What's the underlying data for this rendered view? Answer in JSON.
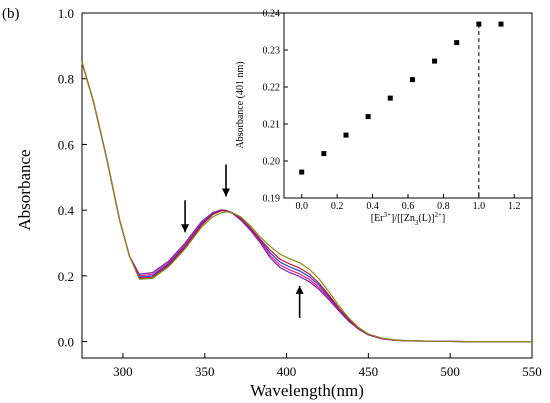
{
  "chart_data": [
    {
      "panel_label": "(b)",
      "type": "line",
      "xlabel": "Wavelength(nm)",
      "ylabel": "Absorbance",
      "xlim": [
        275,
        550
      ],
      "ylim": [
        -0.05,
        1.0
      ],
      "xticks": [
        "300",
        "350",
        "400",
        "450",
        "500",
        "550"
      ],
      "yticks": [
        "0.0",
        "0.2",
        "0.4",
        "0.6",
        "0.8",
        "1.0"
      ],
      "grid": false,
      "legend": "none",
      "x": [
        275,
        282,
        290,
        298,
        304,
        310,
        318,
        328,
        338,
        348,
        355,
        360,
        363,
        367,
        372,
        378,
        384,
        390,
        396,
        402,
        408,
        414,
        420,
        426,
        432,
        438,
        444,
        450,
        458,
        466,
        476,
        490,
        510,
        530,
        550
      ],
      "series": [
        {
          "color": "#7b1fa2",
          "values": [
            0.85,
            0.73,
            0.56,
            0.37,
            0.26,
            0.205,
            0.21,
            0.245,
            0.3,
            0.365,
            0.393,
            0.4,
            0.398,
            0.39,
            0.37,
            0.338,
            0.3,
            0.255,
            0.225,
            0.21,
            0.198,
            0.182,
            0.158,
            0.127,
            0.093,
            0.062,
            0.038,
            0.02,
            0.009,
            0.004,
            0.002,
            0.001,
            0.0,
            0.0,
            0.0
          ]
        },
        {
          "color": "#e91e8c",
          "values": [
            0.85,
            0.73,
            0.56,
            0.37,
            0.26,
            0.2,
            0.205,
            0.24,
            0.295,
            0.362,
            0.392,
            0.401,
            0.399,
            0.391,
            0.372,
            0.34,
            0.303,
            0.262,
            0.233,
            0.218,
            0.206,
            0.189,
            0.164,
            0.131,
            0.096,
            0.064,
            0.039,
            0.021,
            0.009,
            0.004,
            0.002,
            0.001,
            0.0,
            0.0,
            0.0
          ]
        },
        {
          "color": "#1e3fd6",
          "values": [
            0.85,
            0.73,
            0.56,
            0.37,
            0.26,
            0.196,
            0.2,
            0.236,
            0.29,
            0.358,
            0.39,
            0.4,
            0.399,
            0.392,
            0.374,
            0.343,
            0.307,
            0.27,
            0.242,
            0.227,
            0.215,
            0.197,
            0.171,
            0.136,
            0.099,
            0.066,
            0.04,
            0.021,
            0.01,
            0.004,
            0.002,
            0.001,
            0.0,
            0.0,
            0.0
          ]
        },
        {
          "color": "#c0182f",
          "values": [
            0.85,
            0.73,
            0.56,
            0.37,
            0.26,
            0.193,
            0.196,
            0.232,
            0.286,
            0.354,
            0.387,
            0.398,
            0.398,
            0.392,
            0.376,
            0.346,
            0.311,
            0.278,
            0.251,
            0.236,
            0.224,
            0.205,
            0.177,
            0.141,
            0.102,
            0.068,
            0.041,
            0.022,
            0.01,
            0.004,
            0.002,
            0.001,
            0.0,
            0.0,
            0.0
          ]
        },
        {
          "color": "#8a8a1a",
          "values": [
            0.85,
            0.73,
            0.56,
            0.37,
            0.26,
            0.19,
            0.192,
            0.228,
            0.282,
            0.348,
            0.38,
            0.392,
            0.395,
            0.392,
            0.38,
            0.352,
            0.318,
            0.29,
            0.266,
            0.252,
            0.24,
            0.22,
            0.19,
            0.151,
            0.109,
            0.072,
            0.043,
            0.023,
            0.011,
            0.005,
            0.002,
            0.001,
            0.0,
            0.0,
            0.0
          ]
        }
      ],
      "arrows": [
        {
          "x": 338,
          "direction": "down"
        },
        {
          "x": 363,
          "direction": "down"
        },
        {
          "x": 408,
          "direction": "up"
        }
      ]
    },
    {
      "type": "scatter",
      "inset": true,
      "xlabel": "[Er3+]/[[Zn3(L)]2+]",
      "ylabel": "Absorbance (401 nm)",
      "xlim": [
        -0.1,
        1.3
      ],
      "ylim": [
        0.19,
        0.24
      ],
      "xticks": [
        "0.0",
        "0.2",
        "0.4",
        "0.6",
        "0.8",
        "1.0",
        "1.2"
      ],
      "yticks": [
        "0.19",
        "0.20",
        "0.21",
        "0.22",
        "0.23",
        "0.24"
      ],
      "x": [
        0.0,
        0.125,
        0.25,
        0.375,
        0.5,
        0.625,
        0.75,
        0.875,
        1.0,
        1.125
      ],
      "y": [
        0.197,
        0.202,
        0.207,
        0.212,
        0.217,
        0.222,
        0.227,
        0.232,
        0.237,
        0.237
      ],
      "vline": 1.0,
      "marker_color": "#000000"
    }
  ],
  "labels": {
    "panel": "(b)",
    "main_xlabel": "Wavelength(nm)",
    "main_ylabel": "Absorbance",
    "inset_ylabel": "Absorbance (401 nm)"
  }
}
